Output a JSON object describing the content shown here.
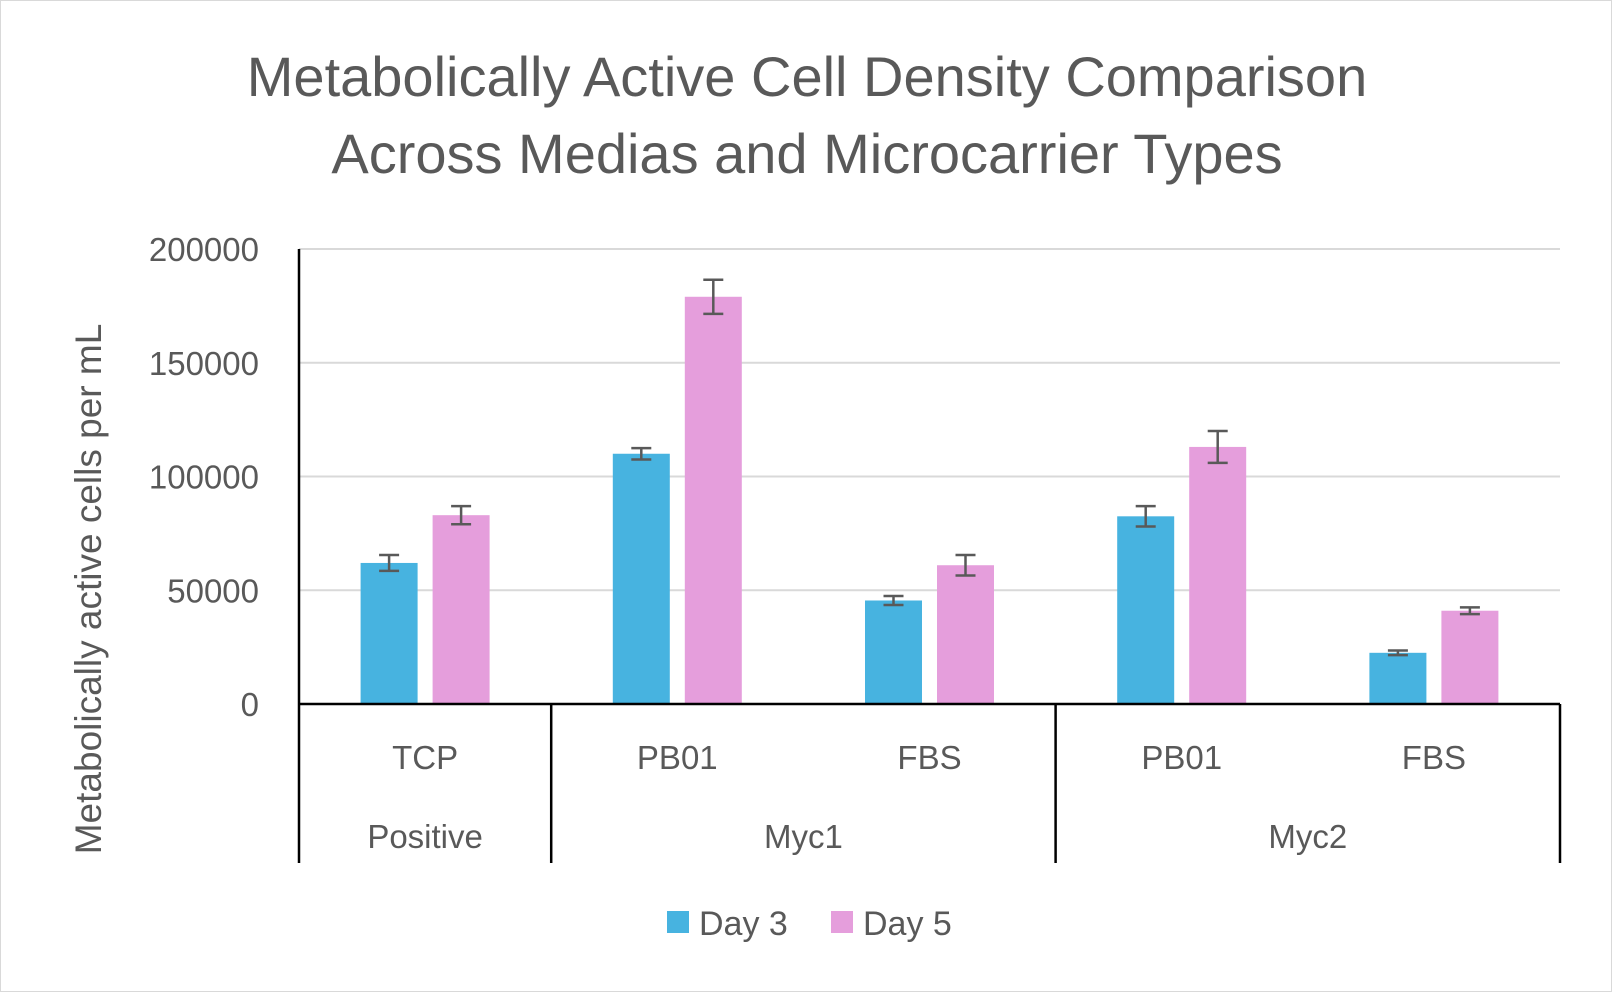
{
  "chart_data": {
    "type": "bar",
    "title": [
      "Metabolically Active Cell Density Comparison",
      "Across Medias and Microcarrier Types"
    ],
    "ylabel": "Metabolically active cells per mL",
    "xlabel": "",
    "ylim": [
      0,
      200000
    ],
    "yticks": [
      "0",
      "50000",
      "100000",
      "150000",
      "200000"
    ],
    "grid": true,
    "legend_position": "bottom",
    "categories": [
      "TCP",
      "PB01",
      "FBS",
      "PB01",
      "FBS"
    ],
    "groups": [
      {
        "label": "Positive",
        "span": 1
      },
      {
        "label": "Myc1",
        "span": 2
      },
      {
        "label": "Myc2",
        "span": 2
      }
    ],
    "series": [
      {
        "name": "Day 3",
        "color": "#47b3e0",
        "values": [
          62000,
          110000,
          45500,
          82500,
          22500
        ],
        "errors": [
          3500,
          2500,
          2000,
          4500,
          1000
        ]
      },
      {
        "name": "Day 5",
        "color": "#e59edc",
        "values": [
          83000,
          179000,
          61000,
          113000,
          41000
        ],
        "errors": [
          4000,
          7500,
          4500,
          7000,
          1500
        ]
      }
    ]
  }
}
